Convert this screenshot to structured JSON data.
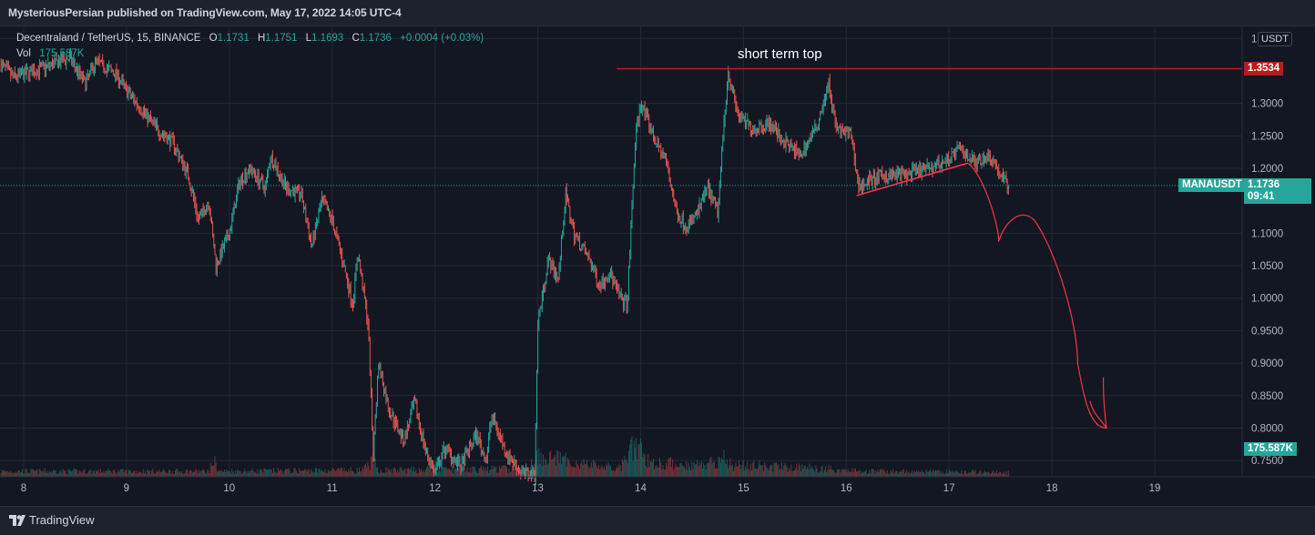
{
  "header": {
    "publish_text": "MysteriousPersian published on TradingView.com, May 17, 2022 14:05 UTC-4"
  },
  "footer": {
    "brand": "TradingView"
  },
  "legend": {
    "symbol_line": "Decentraland / TetherUS, 15, BINANCE",
    "open_label": "O",
    "open": "1.1731",
    "high_label": "H",
    "high": "1.1751",
    "low_label": "L",
    "low": "1.1693",
    "close_label": "C",
    "close": "1.1736",
    "change": "+0.0004 (+0.03%)",
    "vol_label": "Vol",
    "vol_value": "175.587K"
  },
  "currency": "USDT",
  "annotations": {
    "short_term_top": "short term top"
  },
  "badges": {
    "resistance_price": "1.3534",
    "symbol": "MANAUSDT",
    "last_price": "1.1736",
    "countdown": "09:41",
    "volume": "175.587K"
  },
  "colors": {
    "background": "#131722",
    "up": "#26a69a",
    "down": "#ef5350",
    "resistance_line": "#b71c1c",
    "drawing": "#f23645",
    "grid": "#242833"
  },
  "chart_data": {
    "type": "candlestick",
    "symbol": "Decentraland / TetherUS, 15, BINANCE",
    "x_tick_labels": [
      "8",
      "9",
      "10",
      "11",
      "12",
      "13",
      "14",
      "15",
      "16",
      "17",
      "18",
      "19"
    ],
    "y_tick_labels": [
      "1.4000",
      "1.3000",
      "1.2500",
      "1.2000",
      "1.1000",
      "1.0500",
      "1.0000",
      "0.9500",
      "0.9000",
      "0.8500",
      "0.8000",
      "0.7500"
    ],
    "ylim": [
      0.725,
      1.42
    ],
    "xlim": [
      7.77,
      19.85
    ],
    "grid": true,
    "price_path": [
      [
        7.78,
        1.36
      ],
      [
        7.9,
        1.34
      ],
      [
        8.2,
        1.355
      ],
      [
        8.45,
        1.37
      ],
      [
        8.6,
        1.33
      ],
      [
        8.7,
        1.365
      ],
      [
        8.9,
        1.345
      ],
      [
        9.0,
        1.32
      ],
      [
        9.15,
        1.29
      ],
      [
        9.3,
        1.26
      ],
      [
        9.45,
        1.24
      ],
      [
        9.6,
        1.19
      ],
      [
        9.7,
        1.12
      ],
      [
        9.8,
        1.15
      ],
      [
        9.87,
        1.05
      ],
      [
        10.0,
        1.1
      ],
      [
        10.1,
        1.18
      ],
      [
        10.2,
        1.2
      ],
      [
        10.35,
        1.17
      ],
      [
        10.4,
        1.22
      ],
      [
        10.55,
        1.17
      ],
      [
        10.7,
        1.16
      ],
      [
        10.8,
        1.08
      ],
      [
        10.9,
        1.15
      ],
      [
        11.0,
        1.12
      ],
      [
        11.1,
        1.06
      ],
      [
        11.2,
        0.99
      ],
      [
        11.25,
        1.07
      ],
      [
        11.35,
        0.96
      ],
      [
        11.4,
        0.76
      ],
      [
        11.45,
        0.9
      ],
      [
        11.55,
        0.83
      ],
      [
        11.7,
        0.78
      ],
      [
        11.8,
        0.84
      ],
      [
        11.9,
        0.77
      ],
      [
        12.0,
        0.73
      ],
      [
        12.1,
        0.77
      ],
      [
        12.25,
        0.74
      ],
      [
        12.4,
        0.79
      ],
      [
        12.5,
        0.75
      ],
      [
        12.55,
        0.82
      ],
      [
        12.7,
        0.76
      ],
      [
        12.85,
        0.73
      ],
      [
        12.97,
        0.73
      ],
      [
        13.0,
        0.96
      ],
      [
        13.1,
        1.06
      ],
      [
        13.2,
        1.03
      ],
      [
        13.27,
        1.16
      ],
      [
        13.35,
        1.1
      ],
      [
        13.5,
        1.06
      ],
      [
        13.6,
        1.02
      ],
      [
        13.7,
        1.04
      ],
      [
        13.8,
        1.0
      ],
      [
        13.87,
        0.99
      ],
      [
        13.95,
        1.25
      ],
      [
        14.0,
        1.3
      ],
      [
        14.15,
        1.24
      ],
      [
        14.25,
        1.21
      ],
      [
        14.35,
        1.13
      ],
      [
        14.45,
        1.11
      ],
      [
        14.55,
        1.13
      ],
      [
        14.65,
        1.17
      ],
      [
        14.75,
        1.13
      ],
      [
        14.8,
        1.25
      ],
      [
        14.85,
        1.35
      ],
      [
        14.95,
        1.28
      ],
      [
        15.1,
        1.26
      ],
      [
        15.25,
        1.27
      ],
      [
        15.4,
        1.24
      ],
      [
        15.55,
        1.22
      ],
      [
        15.7,
        1.26
      ],
      [
        15.83,
        1.33
      ],
      [
        15.9,
        1.26
      ],
      [
        16.05,
        1.25
      ],
      [
        16.12,
        1.17
      ],
      [
        16.2,
        1.18
      ],
      [
        16.4,
        1.19
      ],
      [
        16.6,
        1.19
      ],
      [
        16.8,
        1.2
      ],
      [
        16.95,
        1.21
      ],
      [
        17.1,
        1.23
      ],
      [
        17.25,
        1.21
      ],
      [
        17.4,
        1.22
      ],
      [
        17.5,
        1.19
      ],
      [
        17.58,
        1.1736
      ]
    ],
    "volume_path": [
      [
        7.78,
        0.1
      ],
      [
        9.8,
        0.1
      ],
      [
        9.85,
        0.3
      ],
      [
        9.9,
        0.1
      ],
      [
        11.3,
        0.12
      ],
      [
        11.4,
        0.3
      ],
      [
        11.45,
        0.12
      ],
      [
        12.9,
        0.15
      ],
      [
        13.0,
        0.4
      ],
      [
        13.4,
        0.25
      ],
      [
        13.8,
        0.15
      ],
      [
        13.95,
        0.6
      ],
      [
        14.1,
        0.25
      ],
      [
        14.6,
        0.22
      ],
      [
        14.8,
        0.35
      ],
      [
        14.9,
        0.22
      ],
      [
        15.8,
        0.15
      ],
      [
        16.2,
        0.1
      ],
      [
        17.58,
        0.08
      ]
    ],
    "resistance_level": 1.3534,
    "last_price": 1.1736
  }
}
